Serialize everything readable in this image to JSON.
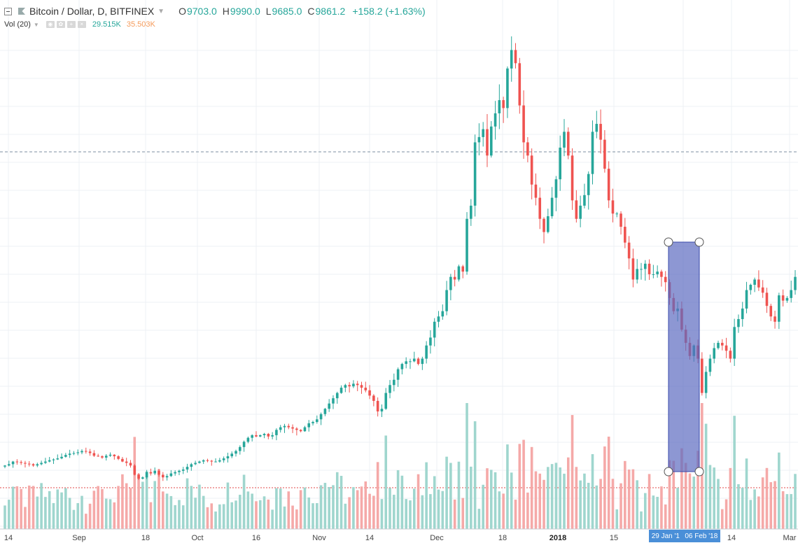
{
  "header": {
    "symbol": "Bitcoin / Dollar, D, BITFINEX",
    "open_label": "O",
    "open": "9703.0",
    "high_label": "H",
    "high": "9990.0",
    "low_label": "L",
    "low": "9685.0",
    "close_label": "C",
    "close": "9861.2",
    "change": "+158.2 (+1.63%)"
  },
  "volume_indicator": {
    "label": "Vol (20)",
    "value1": "29.515K",
    "value2": "35.503K"
  },
  "colors": {
    "up": "#26a69a",
    "down": "#ef5350",
    "up_vol": "#9fd6ce",
    "down_vol": "#f5a9a8",
    "selection_fill": "#5c6bc0",
    "selection_stroke": "#3949ab"
  },
  "date_range_label": {
    "start": "29 Jan '1",
    "end": "06 Feb '18"
  },
  "chart_data": {
    "type": "candlestick",
    "title": "Bitcoin / Dollar, D, BITFINEX",
    "y_unit": "USD",
    "ylim": [
      2300,
      21000
    ],
    "x_tick_labels": [
      "14",
      "Sep",
      "18",
      "Oct",
      "16",
      "Nov",
      "14",
      "Dec",
      "18",
      "2018",
      "15",
      "14",
      "Mar"
    ],
    "dashed_reference_price": 16900,
    "ohlc_close_series": [
      4150,
      4200,
      4300,
      4280,
      4250,
      4220,
      4200,
      4150,
      4200,
      4250,
      4300,
      4350,
      4380,
      4420,
      4480,
      4550,
      4600,
      4620,
      4650,
      4700,
      4680,
      4620,
      4520,
      4500,
      4450,
      4520,
      4560,
      4500,
      4400,
      4300,
      4250,
      4150,
      3800,
      3650,
      3700,
      3900,
      3850,
      3950,
      3800,
      3700,
      3750,
      3850,
      3900,
      3950,
      4000,
      4100,
      4200,
      4250,
      4300,
      4350,
      4330,
      4300,
      4300,
      4350,
      4420,
      4500,
      4600,
      4700,
      4850,
      5050,
      5200,
      5300,
      5250,
      5300,
      5350,
      5250,
      5300,
      5500,
      5600,
      5650,
      5600,
      5550,
      5500,
      5450,
      5600,
      5750,
      5800,
      5900,
      6100,
      6300,
      6500,
      6700,
      6900,
      7100,
      7200,
      7150,
      7250,
      7200,
      7100,
      7000,
      6800,
      6600,
      6200,
      6300,
      6900,
      7200,
      7400,
      7800,
      8000,
      8100,
      8100,
      8200,
      8000,
      8200,
      8700,
      9000,
      9600,
      9800,
      10000,
      10800,
      11300,
      11200,
      11700,
      11500,
      13500,
      14000,
      16400,
      16600,
      16900,
      15900,
      17000,
      17500,
      18000,
      17700,
      19200,
      19900,
      19400,
      17800,
      16400,
      15900,
      14800,
      14300,
      13500,
      13000,
      13600,
      14300,
      15000,
      16200,
      16800,
      15900,
      14200,
      13500,
      14000,
      14400,
      15200,
      16800,
      17100,
      16500,
      15400,
      14200,
      13700,
      13700,
      13200,
      12600,
      12000,
      11200,
      11600,
      11600,
      11800,
      11400,
      11400,
      11500,
      11300,
      11100,
      10500,
      10000,
      10100,
      9300,
      8800,
      8300,
      8700,
      8200,
      6900,
      7700,
      8200,
      8600,
      8800,
      8700,
      8500,
      8200,
      9400,
      9700,
      10100,
      10800,
      11000,
      11200,
      10900,
      10700,
      10200,
      9800,
      9600,
      10600,
      10400,
      10500,
      10800,
      11300
    ]
  }
}
